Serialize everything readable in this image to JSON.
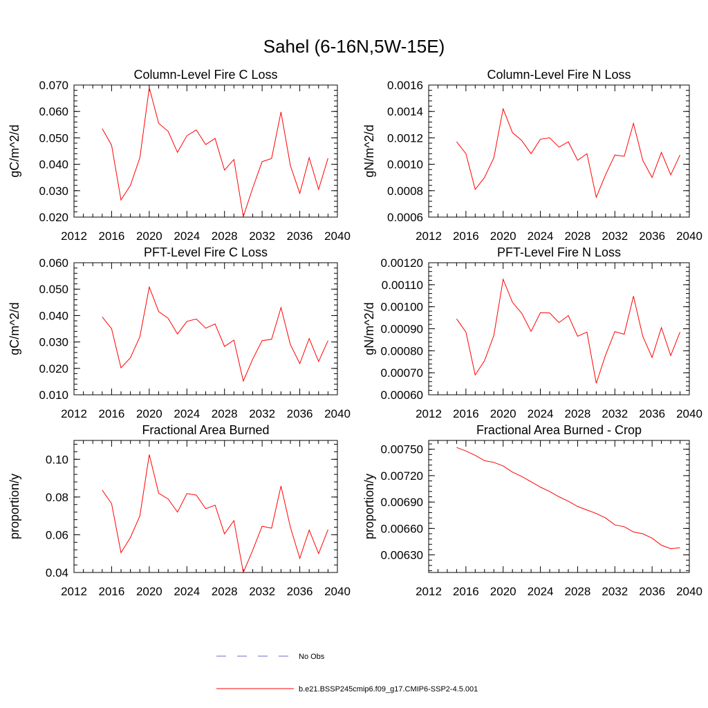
{
  "figure": {
    "title": "Sahel (6-16N,5W-15E)"
  },
  "legend": {
    "items": [
      {
        "label": "No Obs",
        "color": "#6a6ad0",
        "dash": true
      },
      {
        "label": "b.e21.BSSP245cmip6.f09_g17.CMIP6-SSP2-4.5.001",
        "color": "#ff0000",
        "dash": false
      }
    ]
  },
  "chart_data": [
    {
      "type": "line",
      "title": "Column-Level Fire C Loss",
      "ylabel": "gC/m^2/d",
      "xlim": [
        2012,
        2040
      ],
      "ylim": [
        0.02,
        0.07
      ],
      "xticks": [
        2012,
        2016,
        2020,
        2024,
        2028,
        2032,
        2036,
        2040
      ],
      "yticks": [
        0.02,
        0.03,
        0.04,
        0.05,
        0.06,
        0.07
      ],
      "ytick_labels": [
        "0.020",
        "0.030",
        "0.040",
        "0.050",
        "0.060",
        "0.070"
      ],
      "x": [
        2015,
        2016,
        2017,
        2018,
        2019,
        2020,
        2021,
        2022,
        2023,
        2024,
        2025,
        2026,
        2027,
        2028,
        2029,
        2030,
        2031,
        2032,
        2033,
        2034,
        2035,
        2036,
        2037,
        2038,
        2039
      ],
      "series": [
        {
          "color": "#ff0000",
          "values": [
            0.0535,
            0.0472,
            0.0265,
            0.032,
            0.0425,
            0.069,
            0.0555,
            0.0525,
            0.0445,
            0.0508,
            0.053,
            0.0475,
            0.0498,
            0.0378,
            0.0418,
            0.0202,
            0.031,
            0.041,
            0.0422,
            0.0598,
            0.0395,
            0.029,
            0.0425,
            0.0305,
            0.0423
          ]
        }
      ]
    },
    {
      "type": "line",
      "title": "Column-Level Fire N Loss",
      "ylabel": "gN/m^2/d",
      "xlim": [
        2012,
        2040
      ],
      "ylim": [
        0.0006,
        0.0016
      ],
      "xticks": [
        2012,
        2016,
        2020,
        2024,
        2028,
        2032,
        2036,
        2040
      ],
      "yticks": [
        0.0006,
        0.0008,
        0.001,
        0.0012,
        0.0014,
        0.0016
      ],
      "ytick_labels": [
        "0.0006",
        "0.0008",
        "0.0010",
        "0.0012",
        "0.0014",
        "0.0016"
      ],
      "x": [
        2015,
        2016,
        2017,
        2018,
        2019,
        2020,
        2021,
        2022,
        2023,
        2024,
        2025,
        2026,
        2027,
        2028,
        2029,
        2030,
        2031,
        2032,
        2033,
        2034,
        2035,
        2036,
        2037,
        2038,
        2039
      ],
      "series": [
        {
          "color": "#ff0000",
          "values": [
            0.00117,
            0.00108,
            0.00081,
            0.0009,
            0.00105,
            0.00142,
            0.00124,
            0.00118,
            0.00108,
            0.00119,
            0.0012,
            0.00113,
            0.00117,
            0.00103,
            0.00108,
            0.00075,
            0.00092,
            0.00107,
            0.00106,
            0.00131,
            0.00103,
            0.0009,
            0.00109,
            0.00092,
            0.00107
          ]
        }
      ]
    },
    {
      "type": "line",
      "title": "PFT-Level Fire C Loss",
      "ylabel": "gC/m^2/d",
      "xlim": [
        2012,
        2040
      ],
      "ylim": [
        0.01,
        0.06
      ],
      "xticks": [
        2012,
        2016,
        2020,
        2024,
        2028,
        2032,
        2036,
        2040
      ],
      "yticks": [
        0.01,
        0.02,
        0.03,
        0.04,
        0.05,
        0.06
      ],
      "ytick_labels": [
        "0.010",
        "0.020",
        "0.030",
        "0.040",
        "0.050",
        "0.060"
      ],
      "x": [
        2015,
        2016,
        2017,
        2018,
        2019,
        2020,
        2021,
        2022,
        2023,
        2024,
        2025,
        2026,
        2027,
        2028,
        2029,
        2030,
        2031,
        2032,
        2033,
        2034,
        2035,
        2036,
        2037,
        2038,
        2039
      ],
      "series": [
        {
          "color": "#ff0000",
          "values": [
            0.0395,
            0.035,
            0.0202,
            0.024,
            0.032,
            0.0508,
            0.0415,
            0.039,
            0.033,
            0.0378,
            0.0387,
            0.0352,
            0.0368,
            0.0283,
            0.0307,
            0.0152,
            0.0235,
            0.0305,
            0.031,
            0.043,
            0.029,
            0.0218,
            0.0313,
            0.0226,
            0.0305
          ]
        }
      ]
    },
    {
      "type": "line",
      "title": "PFT-Level Fire N Loss",
      "ylabel": "gN/m^2/d",
      "xlim": [
        2012,
        2040
      ],
      "ylim": [
        0.0006,
        0.0012
      ],
      "xticks": [
        2012,
        2016,
        2020,
        2024,
        2028,
        2032,
        2036,
        2040
      ],
      "yticks": [
        0.0006,
        0.0007,
        0.0008,
        0.0009,
        0.001,
        0.0011,
        0.0012
      ],
      "ytick_labels": [
        "0.00060",
        "0.00070",
        "0.00080",
        "0.00090",
        "0.00100",
        "0.00110",
        "0.00120"
      ],
      "x": [
        2015,
        2016,
        2017,
        2018,
        2019,
        2020,
        2021,
        2022,
        2023,
        2024,
        2025,
        2026,
        2027,
        2028,
        2029,
        2030,
        2031,
        2032,
        2033,
        2034,
        2035,
        2036,
        2037,
        2038,
        2039
      ],
      "series": [
        {
          "color": "#ff0000",
          "values": [
            0.000945,
            0.000885,
            0.00069,
            0.000755,
            0.00087,
            0.001125,
            0.00102,
            0.00097,
            0.000888,
            0.000973,
            0.000972,
            0.000928,
            0.00096,
            0.000866,
            0.000885,
            0.000652,
            0.00078,
            0.000887,
            0.000875,
            0.001048,
            0.000865,
            0.00077,
            0.000905,
            0.000778,
            0.000885
          ]
        }
      ]
    },
    {
      "type": "line",
      "title": "Fractional Area Burned",
      "ylabel": "proportion/y",
      "xlim": [
        2012,
        2040
      ],
      "ylim": [
        0.04,
        0.11
      ],
      "xticks": [
        2012,
        2016,
        2020,
        2024,
        2028,
        2032,
        2036,
        2040
      ],
      "yticks": [
        0.04,
        0.06,
        0.08,
        0.1
      ],
      "ytick_labels": [
        "0.04",
        "0.06",
        "0.08",
        "0.10"
      ],
      "x": [
        2015,
        2016,
        2017,
        2018,
        2019,
        2020,
        2021,
        2022,
        2023,
        2024,
        2025,
        2026,
        2027,
        2028,
        2029,
        2030,
        2031,
        2032,
        2033,
        2034,
        2035,
        2036,
        2037,
        2038,
        2039
      ],
      "series": [
        {
          "color": "#ff0000",
          "values": [
            0.0837,
            0.0765,
            0.0505,
            0.0585,
            0.07,
            0.1025,
            0.082,
            0.079,
            0.072,
            0.0818,
            0.081,
            0.0738,
            0.0757,
            0.0605,
            0.0675,
            0.04,
            0.0518,
            0.0645,
            0.0635,
            0.0858,
            0.064,
            0.0475,
            0.0625,
            0.05,
            0.0627
          ]
        }
      ]
    },
    {
      "type": "line",
      "title": "Fractional Area Burned - Crop",
      "ylabel": "proportion/y",
      "xlim": [
        2012,
        2040
      ],
      "ylim": [
        0.0061,
        0.0076
      ],
      "xticks": [
        2012,
        2016,
        2020,
        2024,
        2028,
        2032,
        2036,
        2040
      ],
      "yticks": [
        0.0063,
        0.0066,
        0.0069,
        0.0072,
        0.0075
      ],
      "ytick_labels": [
        "0.00630",
        "0.00660",
        "0.00690",
        "0.00720",
        "0.00750"
      ],
      "x": [
        2015,
        2016,
        2017,
        2018,
        2019,
        2020,
        2021,
        2022,
        2023,
        2024,
        2025,
        2026,
        2027,
        2028,
        2029,
        2030,
        2031,
        2032,
        2033,
        2034,
        2035,
        2036,
        2037,
        2038,
        2039
      ],
      "series": [
        {
          "color": "#ff0000",
          "values": [
            0.00752,
            0.00748,
            0.00743,
            0.00737,
            0.00735,
            0.00731,
            0.00724,
            0.00719,
            0.00713,
            0.00707,
            0.00702,
            0.00696,
            0.00691,
            0.00685,
            0.00681,
            0.00677,
            0.00672,
            0.00664,
            0.00662,
            0.00656,
            0.00654,
            0.00649,
            0.00641,
            0.00637,
            0.00638
          ]
        }
      ]
    }
  ]
}
